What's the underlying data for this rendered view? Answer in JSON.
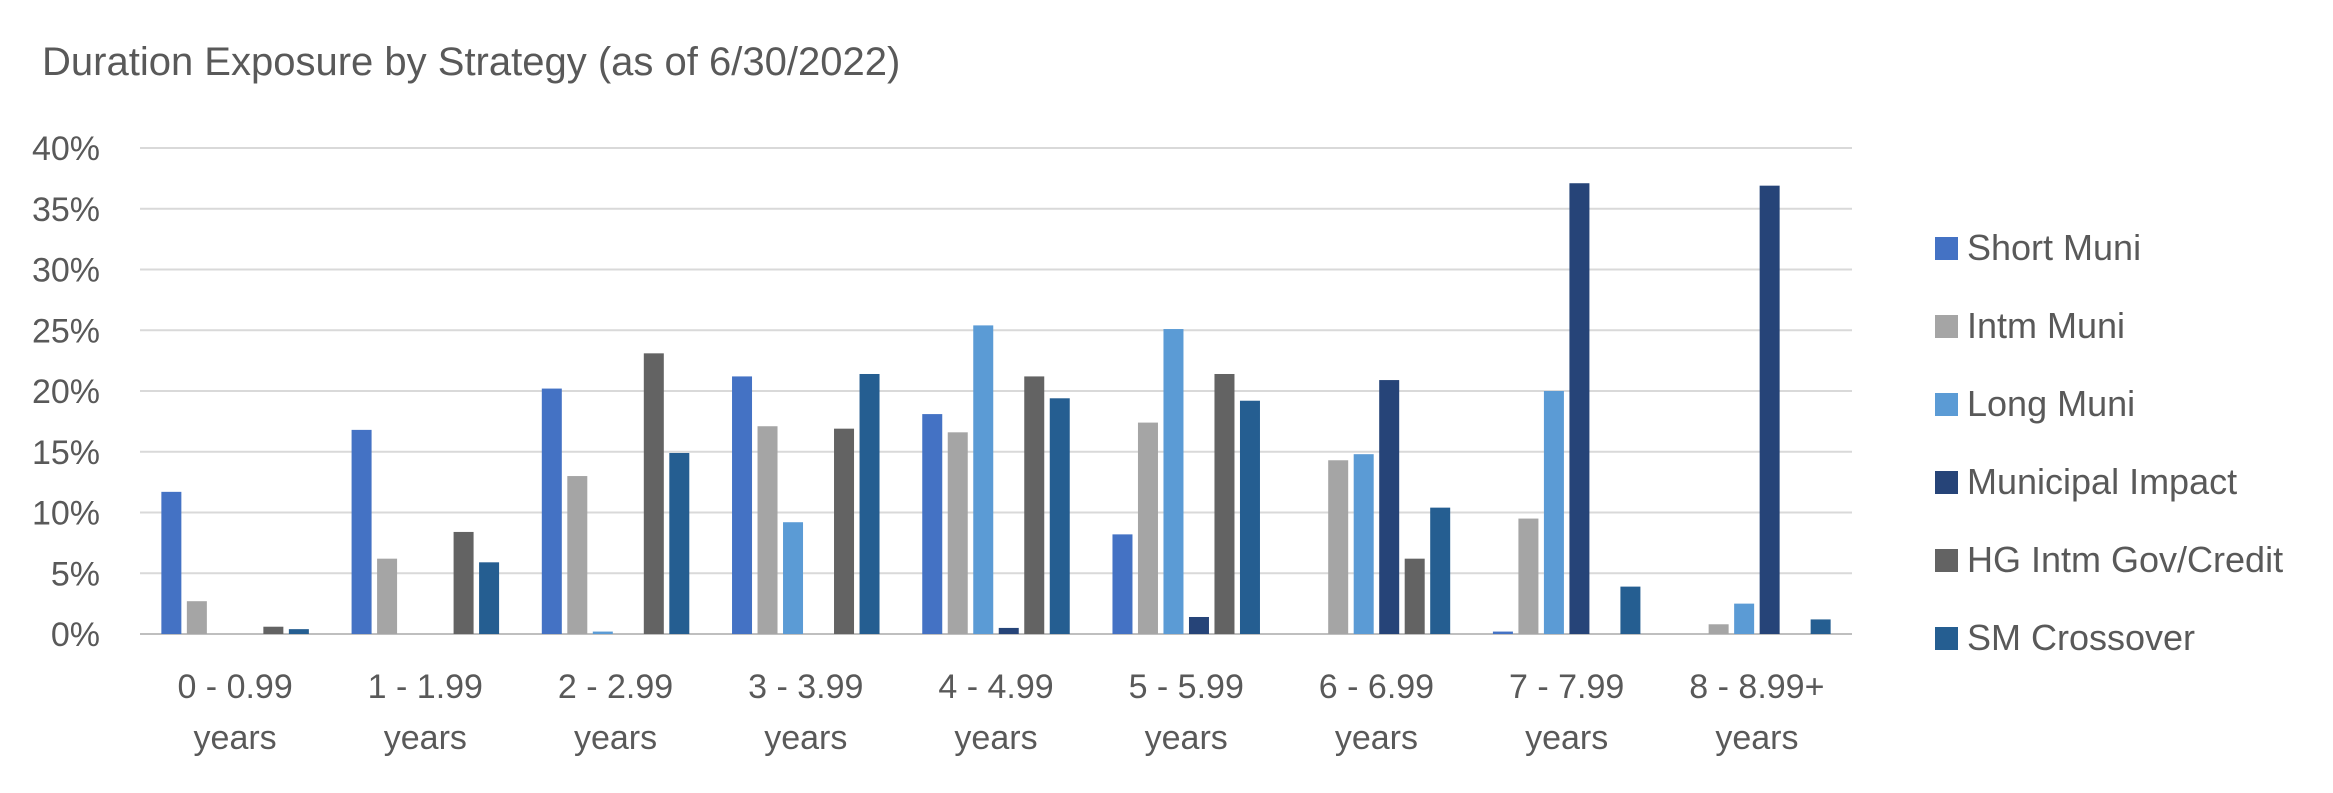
{
  "chart_data": {
    "type": "bar",
    "title": "Duration Exposure by Strategy (as of 6/30/2022)",
    "xlabel": "",
    "ylabel": "",
    "ylim": [
      0,
      40
    ],
    "y_ticks": [
      "0%",
      "5%",
      "10%",
      "15%",
      "20%",
      "25%",
      "30%",
      "35%",
      "40%"
    ],
    "grid": true,
    "legend_position": "right",
    "categories": [
      [
        "0 - 0.99",
        "years"
      ],
      [
        "1 - 1.99",
        "years"
      ],
      [
        "2 - 2.99",
        "years"
      ],
      [
        "3 - 3.99",
        "years"
      ],
      [
        "4 - 4.99",
        "years"
      ],
      [
        "5 - 5.99",
        "years"
      ],
      [
        "6 - 6.99",
        "years"
      ],
      [
        "7 - 7.99",
        "years"
      ],
      [
        "8 - 8.99+",
        "years"
      ]
    ],
    "series": [
      {
        "name": "Short Muni",
        "color": "#4472c4",
        "values": [
          11.7,
          16.8,
          20.2,
          21.2,
          18.1,
          8.2,
          0,
          0.2,
          0
        ]
      },
      {
        "name": "Intm Muni",
        "color": "#a5a5a5",
        "values": [
          2.7,
          6.2,
          13.0,
          17.1,
          16.6,
          17.4,
          14.3,
          9.5,
          0.8
        ]
      },
      {
        "name": "Long Muni",
        "color": "#5b9bd5",
        "values": [
          0,
          0,
          0.2,
          9.2,
          25.4,
          25.1,
          14.8,
          20.0,
          2.5
        ]
      },
      {
        "name": "Municipal Impact",
        "color": "#264478",
        "values": [
          0,
          0,
          0,
          0,
          0.5,
          1.4,
          20.9,
          37.1,
          36.9
        ]
      },
      {
        "name": "HG Intm Gov/Credit",
        "color": "#636363",
        "values": [
          0.6,
          8.4,
          23.1,
          16.9,
          21.2,
          21.4,
          6.2,
          0,
          0
        ]
      },
      {
        "name": "SM Crossover",
        "color": "#255e91",
        "values": [
          0.4,
          5.9,
          14.9,
          21.4,
          19.4,
          19.2,
          10.4,
          3.9,
          1.2
        ]
      }
    ]
  }
}
